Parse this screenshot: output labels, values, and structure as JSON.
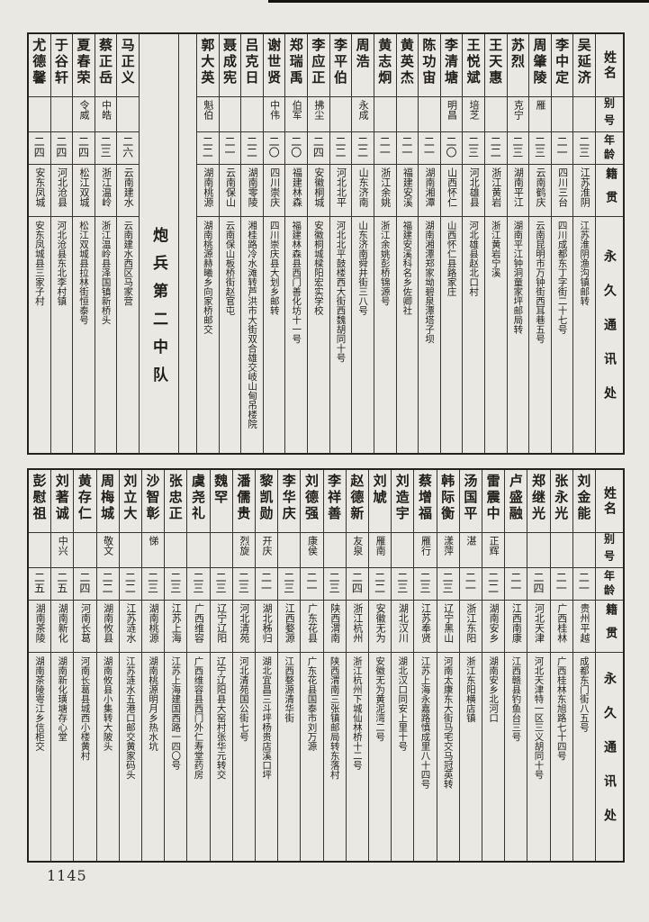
{
  "page_number": "1145",
  "section_title": "炮兵第二中队",
  "headers": {
    "name": "姓名",
    "alias": "别号",
    "age": "年龄",
    "native": "籍贯",
    "address": "永久通讯处"
  },
  "top_table": {
    "entries_right": [
      {
        "name": "吴延济",
        "alias": "",
        "age": "二三",
        "native": "江苏淮阴",
        "address": "江苏淮阴渔沟镇邮转"
      },
      {
        "name": "李中定",
        "alias": "",
        "age": "二一",
        "native": "四川三台",
        "address": "四川成都东丁字街二十七号"
      },
      {
        "name": "周肇陵",
        "alias": "雁",
        "age": "二三",
        "native": "云南鹤庆",
        "address": "云南昆明市万钟街西耳巷五号"
      },
      {
        "name": "苏烈",
        "alias": "克宁",
        "age": "二三",
        "native": "湖南平江",
        "address": "湖南平江钟洞童家坪邮局转"
      },
      {
        "name": "王天惠",
        "alias": "",
        "age": "二二",
        "native": "浙江黄岩",
        "address": "浙江黄岩宁溪"
      },
      {
        "name": "王悦斌",
        "alias": "培芝",
        "age": "二三",
        "native": "河北雄县",
        "address": "河北雄县赵北口村"
      },
      {
        "name": "李清塘",
        "alias": "明昌",
        "age": "二〇",
        "native": "山西怀仁",
        "address": "山西怀仁县路家庄"
      },
      {
        "name": "陈功宙",
        "alias": "",
        "age": "二一",
        "native": "湖南湘潭",
        "address": "湖南湘潭郑家坳碧泉潭塔子坝"
      },
      {
        "name": "黄英杰",
        "alias": "",
        "age": "二一",
        "native": "福建安溪",
        "address": "福建安溪科名乡佐卿社"
      },
      {
        "name": "黄志炯",
        "alias": "",
        "age": "二一",
        "native": "浙江余姚",
        "address": "浙江余姚彭桥锦源号"
      },
      {
        "name": "周浩",
        "alias": "永成",
        "age": "二二",
        "native": "山东济南",
        "address": "山东济南舜井街三八号"
      },
      {
        "name": "李平伯",
        "alias": "",
        "age": "二二",
        "native": "河北北平",
        "address": "河北北平鼓楼西大街西魏胡同十号"
      },
      {
        "name": "李应正",
        "alias": "拂尘",
        "age": "二四",
        "native": "安徽桐城",
        "address": "安徽桐城樑阳宏实学校"
      },
      {
        "name": "郑瑞禹",
        "alias": "伯军",
        "age": "二〇",
        "native": "福建林森",
        "address": "福建林森县西门善化坊十一号"
      },
      {
        "name": "谢世贤",
        "alias": "中伟",
        "age": "二〇",
        "native": "四川崇庆",
        "address": "四川崇庆县大划乡邮转"
      },
      {
        "name": "吕克日",
        "alias": "",
        "age": "二二",
        "native": "湖南零陵",
        "address": "湘桂路冷水滩转芦洪市大街双合雄交岐山甸吊楼院"
      },
      {
        "name": "聂成宪",
        "alias": "",
        "age": "二一",
        "native": "云南保山",
        "address": "云南保山板桥街赵官屯"
      },
      {
        "name": "郭大英",
        "alias": "魁伯",
        "age": "二二",
        "native": "湖南桃源",
        "address": "湖南桃源赫曦乡向家桥邮交"
      }
    ],
    "entries_left": [
      {
        "name": "马正义",
        "alias": "",
        "age": "二六",
        "native": "云南建水",
        "address": "云南建水西区马家营"
      },
      {
        "name": "蔡正岳",
        "alias": "中皓",
        "age": "二三",
        "native": "浙江温岭",
        "address": "浙江温岭县泽国镇新桥头"
      },
      {
        "name": "夏春荣",
        "alias": "令威",
        "age": "二四",
        "native": "松江双城",
        "address": "松江双城县拉林街恒泰号"
      },
      {
        "name": "于谷轩",
        "alias": "",
        "age": "二四",
        "native": "河北沧县",
        "address": "河北沧县东北李村镇"
      },
      {
        "name": "尤德馨",
        "alias": "",
        "age": "二四",
        "native": "安东凤城",
        "address": "安东凤城县三家子村"
      }
    ]
  },
  "bottom_table": {
    "entries": [
      {
        "name": "刘金能",
        "alias": "",
        "age": "二一",
        "native": "贵州平越",
        "address": "成都东门街八五号"
      },
      {
        "name": "张永光",
        "alias": "",
        "age": "二一",
        "native": "广西桂林",
        "address": "广西桂林东旭路七十四号"
      },
      {
        "name": "郑继光",
        "alias": "",
        "age": "二四",
        "native": "河北天津",
        "address": "河北天津特一区三义胡同十号"
      },
      {
        "name": "卢盛融",
        "alias": "",
        "age": "二一",
        "native": "江西南康",
        "address": "江西赣县钓鱼台三号"
      },
      {
        "name": "雷震中",
        "alias": "正辉",
        "age": "二二",
        "native": "湖南安乡",
        "address": "湖南安乡北河口"
      },
      {
        "name": "汤国平",
        "alias": "湛",
        "age": "二一",
        "native": "浙江东阳",
        "address": "浙江东阳横店镇"
      },
      {
        "name": "韩际衡",
        "alias": "漾萍",
        "age": "二三",
        "native": "辽宁黑山",
        "address": "河南太康东大街马宅交马冠英转"
      },
      {
        "name": "蔡增福",
        "alias": "雁行",
        "age": "二三",
        "native": "江苏奉贤",
        "address": "江苏上海永嘉路慎成里八十四号"
      },
      {
        "name": "刘造宇",
        "alias": "",
        "age": "二三",
        "native": "湖北汉川",
        "address": "湖北汉口同安上里十号"
      },
      {
        "name": "刘虓",
        "alias": "雁南",
        "age": "二二",
        "native": "安徽无为",
        "address": "安徽无为黄泥湾二号"
      },
      {
        "name": "赵德新",
        "alias": "友泉",
        "age": "二四",
        "native": "浙江杭州",
        "address": "浙江杭州下城仙林桥十二号"
      },
      {
        "name": "李祥善",
        "alias": "",
        "age": "二三",
        "native": "陕西渭南",
        "address": "陕西渭南三张镇邮局转东落村"
      },
      {
        "name": "刘德强",
        "alias": "康侯",
        "age": "二一",
        "native": "广东花县",
        "address": "广东花县国泰市刘万源"
      },
      {
        "name": "李华庆",
        "alias": "",
        "age": "二三",
        "native": "江西婺源",
        "address": "江西婺源清华街"
      },
      {
        "name": "黎凯勋",
        "alias": "开庆",
        "age": "二一",
        "native": "湖北秭归",
        "address": "湖北宜昌三斗坪杨贵店溪口坪"
      },
      {
        "name": "潘儒贵",
        "alias": "烈旋",
        "age": "二三",
        "native": "河北清苑",
        "address": "河北清苑国公街七号"
      },
      {
        "name": "魏罕",
        "alias": "",
        "age": "二三",
        "native": "辽宁辽阳",
        "address": "辽宁辽阳县大窑村张华元转交"
      },
      {
        "name": "虞尧礼",
        "alias": "",
        "age": "二三",
        "native": "广西维容",
        "address": "广西维容县西门外仁寿堂药房"
      },
      {
        "name": "张忠正",
        "alias": "",
        "age": "二三",
        "native": "江苏上海",
        "address": "江苏上海建国西路一四〇号"
      },
      {
        "name": "沙智彰",
        "alias": "悌",
        "age": "二三",
        "native": "湖南桃源",
        "address": "湖南桃源明月乡热水坑"
      },
      {
        "name": "刘立大",
        "alias": "",
        "age": "二二",
        "native": "江苏涟水",
        "address": "江苏涟水五港口邮交黄家码头"
      },
      {
        "name": "周梅城",
        "alias": "敬文",
        "age": "二二",
        "native": "湖南攸县",
        "address": "湖南攸县小集转大陂头"
      },
      {
        "name": "黄存仁",
        "alias": "",
        "age": "二四",
        "native": "河南长葛",
        "address": "河南长葛县城西小楼黄村"
      },
      {
        "name": "刘著诚",
        "alias": "中兴",
        "age": "二五",
        "native": "湖南新化",
        "address": "湖南新化璜塘存心堂"
      },
      {
        "name": "彭慰祖",
        "alias": "",
        "age": "二五",
        "native": "湖南茶陵",
        "address": "湖南茶陵雩江乡信柜交"
      }
    ]
  }
}
